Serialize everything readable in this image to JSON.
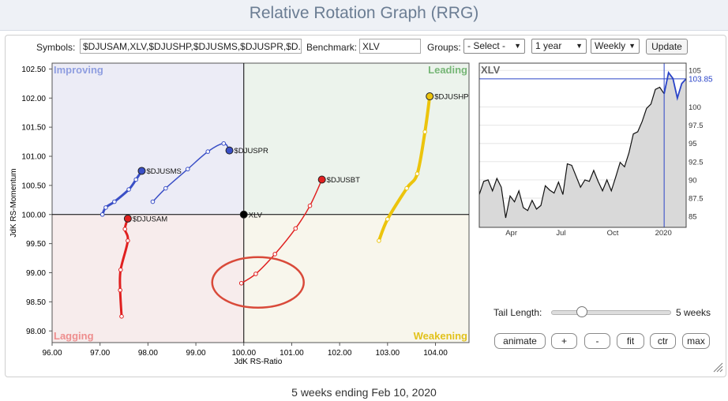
{
  "title": "Relative Rotation Graph (RRG)",
  "toolbar": {
    "symbols_label": "Symbols:",
    "symbols_value": "$DJUSAM,XLV,$DJUSHP,$DJUSMS,$DJUSPR,$D..",
    "benchmark_label": "Benchmark:",
    "benchmark_value": "XLV",
    "groups_label": "Groups:",
    "groups_value": "- Select -",
    "period_value": "1 year",
    "frequency_value": "Weekly",
    "update_label": "Update"
  },
  "colors": {
    "improving_bg": "#ececf6",
    "leading_bg": "#ecf3ec",
    "lagging_bg": "#f7ecec",
    "weakening_bg": "#f8f6ec",
    "improving_text": "#8f9ee0",
    "leading_text": "#76b676",
    "lagging_text": "#ee8e8e",
    "weakening_text": "#e2c21c"
  },
  "chart_data": [
    {
      "type": "scatter",
      "subtype": "relative-rotation-graph",
      "xlabel": "JdK RS-Ratio",
      "ylabel": "JdK RS-Momentum",
      "xlim": [
        96.0,
        104.7
      ],
      "ylim": [
        97.8,
        102.6
      ],
      "xticks": [
        "96.00",
        "97.00",
        "98.00",
        "99.00",
        "100.00",
        "101.00",
        "102.00",
        "103.00",
        "104.00"
      ],
      "yticks": [
        "102.50",
        "102.00",
        "101.50",
        "101.00",
        "100.50",
        "100.00",
        "99.50",
        "99.00",
        "98.50",
        "98.00"
      ],
      "quadrants": {
        "improving": "Improving",
        "leading": "Leading",
        "lagging": "Lagging",
        "weakening": "Weakening"
      },
      "center": [
        100.0,
        100.0
      ],
      "series": [
        {
          "name": "$DJUSAM",
          "color": "#e02020",
          "width": 3,
          "points": [
            [
              97.45,
              98.25
            ],
            [
              97.42,
              98.7
            ],
            [
              97.43,
              99.05
            ],
            [
              97.58,
              99.55
            ],
            [
              97.52,
              99.75
            ],
            [
              97.58,
              99.93
            ]
          ]
        },
        {
          "name": "$DJUSMS",
          "color": "#3a4fc6",
          "width": 3,
          "points": [
            [
              97.05,
              100.0
            ],
            [
              97.12,
              100.12
            ],
            [
              97.3,
              100.22
            ],
            [
              97.6,
              100.43
            ],
            [
              97.75,
              100.6
            ],
            [
              97.87,
              100.75
            ]
          ]
        },
        {
          "name": "$DJUSPR",
          "color": "#3a4fc6",
          "width": 1.5,
          "points": [
            [
              98.1,
              100.22
            ],
            [
              98.37,
              100.45
            ],
            [
              98.83,
              100.78
            ],
            [
              99.25,
              101.08
            ],
            [
              99.58,
              101.22
            ],
            [
              99.7,
              101.1
            ]
          ]
        },
        {
          "name": "$DJUSBT",
          "color": "#e02020",
          "width": 1.5,
          "points": [
            [
              99.95,
              98.82
            ],
            [
              100.25,
              98.98
            ],
            [
              100.65,
              99.32
            ],
            [
              101.08,
              99.76
            ],
            [
              101.38,
              100.15
            ],
            [
              101.63,
              100.6
            ]
          ]
        },
        {
          "name": "$DJUSHP",
          "color": "#ecc40c",
          "width": 4,
          "points": [
            [
              102.82,
              99.55
            ],
            [
              103.0,
              99.92
            ],
            [
              103.4,
              100.45
            ],
            [
              103.62,
              100.7
            ],
            [
              103.78,
              101.42
            ],
            [
              103.88,
              102.03
            ]
          ]
        },
        {
          "name": "XLV",
          "color": "#000000",
          "width": 0,
          "points": [
            [
              100.0,
              100.0
            ]
          ]
        }
      ],
      "annotations": [
        "highlight ellipse around $DJUSBT"
      ]
    },
    {
      "type": "line",
      "title": "XLV",
      "x_labels": [
        "Apr",
        "Jul",
        "Oct",
        "2020"
      ],
      "y_ticks": [
        85,
        87.5,
        90,
        92.5,
        95,
        97.5,
        100,
        105
      ],
      "y_tick_labels": [
        "85",
        "87.5",
        "90",
        "92.5",
        "95",
        "97.5",
        "100",
        "105"
      ],
      "ylim": [
        83.5,
        106.0
      ],
      "last_value_label": "103.85",
      "last_value": 103.85,
      "values": [
        88.0,
        89.8,
        90.0,
        88.5,
        90.2,
        89.0,
        84.8,
        87.8,
        87.0,
        88.5,
        86.2,
        85.8,
        87.2,
        86.0,
        86.5,
        89.2,
        88.6,
        88.2,
        89.7,
        88.0,
        92.2,
        92.0,
        90.5,
        89.0,
        90.0,
        89.8,
        91.3,
        89.8,
        88.5,
        90.0,
        88.5,
        90.4,
        92.4,
        91.8,
        93.7,
        96.3,
        96.6,
        98.0,
        99.8,
        100.4,
        102.4,
        102.7,
        101.8,
        104.7,
        103.9,
        101.2,
        103.2,
        103.85
      ],
      "cursor_index": 42
    }
  ],
  "tail": {
    "label": "Tail Length:",
    "value_label": "5 weeks",
    "value": 5,
    "max": 20
  },
  "buttons": {
    "animate": "animate",
    "plus": "+",
    "minus": "-",
    "fit": "fit",
    "ctr": "ctr",
    "max": "max"
  },
  "footer": "5 weeks ending Feb 10, 2020"
}
